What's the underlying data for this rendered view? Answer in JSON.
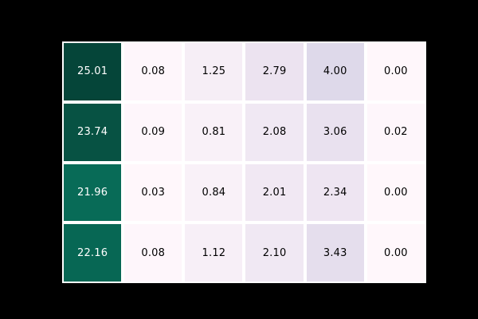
{
  "figure": {
    "background_color": "#000000",
    "plot_border_color": "#ffffff",
    "title": ""
  },
  "chart_data": {
    "type": "heatmap",
    "title": "",
    "xlabel": "",
    "ylabel": "",
    "x_tick_labels": [],
    "y_tick_labels": [],
    "legend": "none",
    "colorbar": "none",
    "rows": 4,
    "cols": 6,
    "values": [
      [
        25.01,
        0.08,
        1.25,
        2.79,
        4.0,
        0.0
      ],
      [
        23.74,
        0.09,
        0.81,
        2.08,
        3.06,
        0.02
      ],
      [
        21.96,
        0.03,
        0.84,
        2.01,
        2.34,
        0.0
      ],
      [
        22.16,
        0.08,
        1.12,
        2.1,
        3.43,
        0.0
      ]
    ],
    "cell_labels": [
      [
        "25.01",
        "0.08",
        "1.25",
        "2.79",
        "4.00",
        "0.00"
      ],
      [
        "23.74",
        "0.09",
        "0.81",
        "2.08",
        "3.06",
        "0.02"
      ],
      [
        "21.96",
        "0.03",
        "0.84",
        "2.01",
        "2.34",
        "0.00"
      ],
      [
        "22.16",
        "0.08",
        "1.12",
        "2.10",
        "3.43",
        "0.00"
      ]
    ],
    "cell_colors": [
      [
        "#054539",
        "#fef6fb",
        "#f6eef6",
        "#ece3f0",
        "#ded9ea",
        "#fff7fb"
      ],
      [
        "#075243",
        "#fef6fb",
        "#f9f1f8",
        "#f0e8f3",
        "#e9e1ef",
        "#fef6fb"
      ],
      [
        "#086b57",
        "#fff7fb",
        "#f9f1f8",
        "#f1e8f3",
        "#eee5f2",
        "#fff7fb"
      ],
      [
        "#076754",
        "#fef6fb",
        "#f7eff7",
        "#f0e8f3",
        "#e5deed",
        "#fff7fb"
      ]
    ],
    "text_colors": [
      [
        "#ffffff",
        "#000000",
        "#000000",
        "#000000",
        "#000000",
        "#000000"
      ],
      [
        "#ffffff",
        "#000000",
        "#000000",
        "#000000",
        "#000000",
        "#000000"
      ],
      [
        "#ffffff",
        "#000000",
        "#000000",
        "#000000",
        "#000000",
        "#000000"
      ],
      [
        "#ffffff",
        "#000000",
        "#000000",
        "#000000",
        "#000000",
        "#000000"
      ]
    ],
    "value_format": "2 decimal places",
    "colormap": "pale-pink through lavender to dark green (PuBuGn-like)",
    "vmin": 0.0,
    "vmax": 25.01,
    "gridline_color": "#ffffff",
    "grid": "white gaps between cells with thin white outer border"
  }
}
